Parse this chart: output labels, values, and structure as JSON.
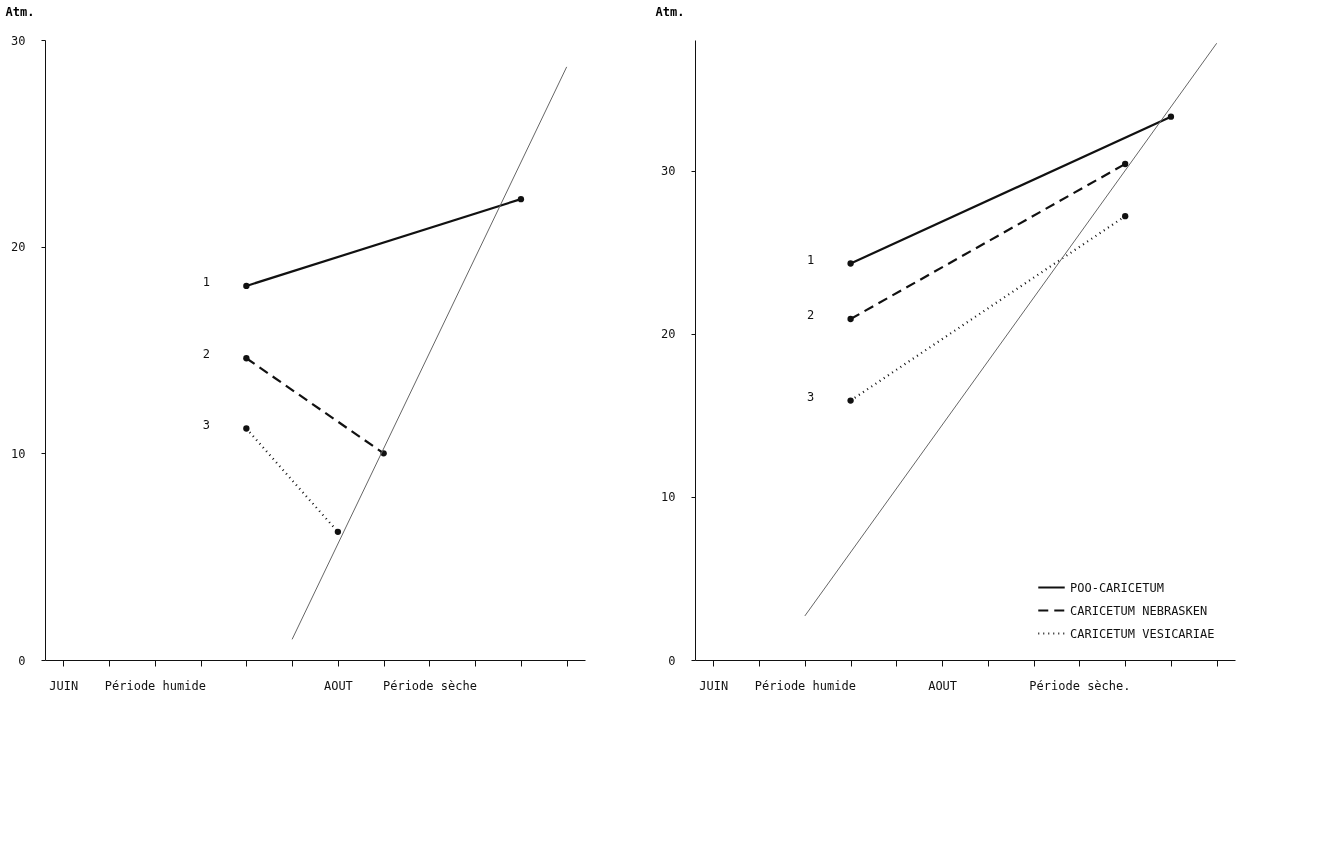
{
  "chart_data": [
    {
      "type": "line",
      "ylabel": "Atm.",
      "ylim": [
        0,
        30
      ],
      "grid": false,
      "legend": false,
      "categories": [
        "JUIN",
        null,
        "Période humide",
        null,
        null,
        null,
        "AOUT",
        null,
        "Période sèche",
        null,
        null,
        null
      ],
      "yticks": [
        0,
        10,
        20,
        30
      ],
      "series": [
        {
          "color": "#111111",
          "line_style": "solid",
          "marker": "circle",
          "values": [
            null,
            null,
            null,
            null,
            18.1,
            null,
            null,
            null,
            null,
            null,
            22.3,
            null
          ]
        },
        {
          "color": "#111111",
          "line_style": "dashed",
          "marker": "circle",
          "values": [
            null,
            null,
            null,
            null,
            14.6,
            null,
            null,
            10.0,
            null,
            null,
            null,
            null
          ]
        },
        {
          "color": "#111111",
          "line_style": "dotted",
          "marker": "circle",
          "values": [
            null,
            null,
            null,
            null,
            11.2,
            null,
            6.2,
            null,
            null,
            null,
            null,
            null
          ]
        },
        {
          "color": "#666666",
          "line_style": "solid",
          "marker": "none",
          "values": [
            null,
            null,
            null,
            null,
            null,
            1.0,
            null,
            null,
            null,
            null,
            null,
            28.7
          ]
        }
      ],
      "annotations": [
        "1",
        "2",
        "3"
      ]
    },
    {
      "type": "line",
      "ylabel": "Atm.",
      "ylim": [
        0,
        38
      ],
      "grid": false,
      "legend": "bottom right",
      "categories": [
        "JUIN",
        null,
        "Période humide",
        null,
        null,
        "AOUT",
        null,
        null,
        "Période sèche.",
        null,
        null,
        null
      ],
      "yticks": [
        0,
        10,
        20,
        30
      ],
      "series": [
        {
          "name": "POO-CARICETUM",
          "color": "#111111",
          "line_style": "solid",
          "marker": "circle",
          "values": [
            null,
            null,
            null,
            24.3,
            null,
            null,
            null,
            null,
            null,
            null,
            33.3,
            null
          ]
        },
        {
          "name": "CARICETUM NEBRASKEN",
          "color": "#111111",
          "line_style": "dashed",
          "marker": "circle",
          "values": [
            null,
            null,
            null,
            20.9,
            null,
            null,
            null,
            null,
            null,
            30.4,
            null,
            null
          ]
        },
        {
          "name": "CARICETUM VESICARIAE",
          "color": "#111111",
          "line_style": "dotted",
          "marker": "circle",
          "values": [
            null,
            null,
            null,
            15.9,
            null,
            null,
            null,
            null,
            null,
            27.2,
            null,
            null
          ]
        },
        {
          "color": "#666666",
          "line_style": "solid",
          "marker": "none",
          "values": [
            null,
            null,
            2.7,
            null,
            null,
            null,
            null,
            null,
            null,
            null,
            null,
            37.8
          ]
        }
      ],
      "annotations": [
        "1",
        "2",
        "3"
      ]
    }
  ]
}
